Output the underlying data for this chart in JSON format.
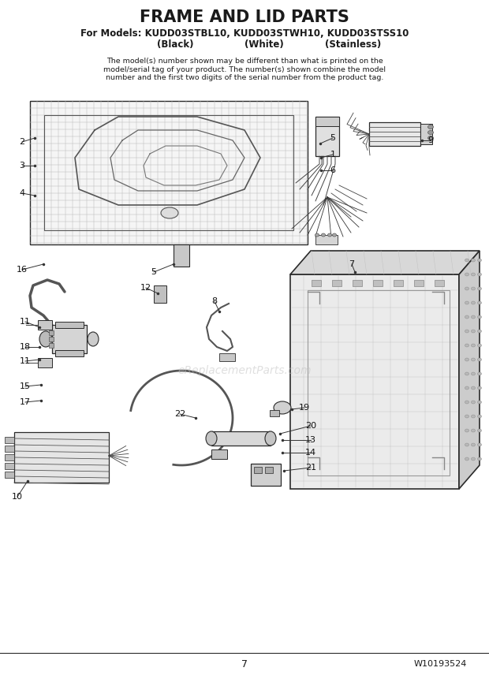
{
  "title": "FRAME AND LID PARTS",
  "subtitle_line1": "For Models: KUDD03STBL10, KUDD03STWH10, KUDD03STSS10",
  "subtitle_line2_black": "(Black)",
  "subtitle_line2_white": "(White)",
  "subtitle_line2_stainless": "(Stainless)",
  "disclaimer": "The model(s) number shown may be different than what is printed on the\nmodel/serial tag of your product. The number(s) shown combine the model\nnumber and the first two digits of the serial number from the product tag.",
  "page_number": "7",
  "doc_number": "W10193524",
  "watermark": "eReplacementParts.com",
  "bg_color": "#ffffff",
  "text_color": "#1a1a1a",
  "line_color": "#2a2a2a",
  "part_color": "#c8c8c8",
  "shadow_color": "#aaaaaa"
}
